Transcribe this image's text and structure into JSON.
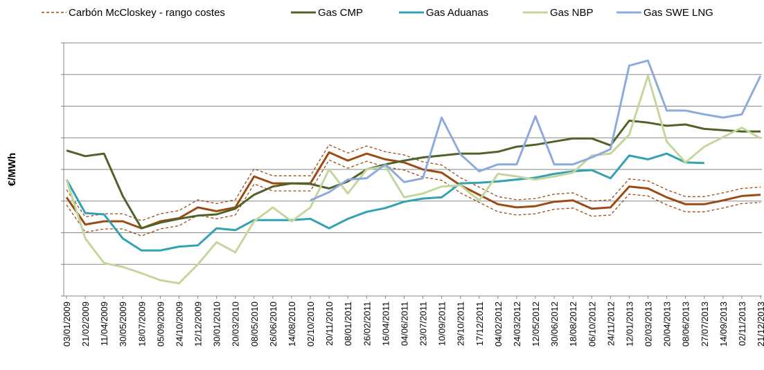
{
  "chart_data": {
    "type": "line",
    "ylabel": "€/MWh",
    "legend": "top",
    "grid": true,
    "ylim": [
      0,
      40
    ],
    "yticks": [
      0,
      5,
      10,
      15,
      20,
      25,
      30,
      35,
      40
    ],
    "categories": [
      "03/01/2009",
      "21/02/2009",
      "11/04/2009",
      "30/05/2009",
      "18/07/2009",
      "05/09/2009",
      "24/10/2009",
      "12/12/2009",
      "30/01/2010",
      "20/03/2010",
      "08/05/2010",
      "26/06/2010",
      "14/08/2010",
      "02/10/2010",
      "20/11/2010",
      "08/01/2011",
      "26/02/2011",
      "16/04/2011",
      "04/06/2011",
      "23/07/2011",
      "10/09/2011",
      "29/10/2011",
      "17/12/2011",
      "04/02/2012",
      "24/03/2012",
      "12/05/2012",
      "30/06/2012",
      "18/08/2012",
      "06/10/2012",
      "24/11/2012",
      "12/01/2013",
      "02/03/2013",
      "20/04/2013",
      "08/06/2013",
      "27/07/2013",
      "14/09/2013",
      "02/11/2013",
      "21/12/2013"
    ],
    "series": [
      {
        "name": "Carbón McCloskey - rango costes",
        "color": "#9c4a12",
        "dash": true,
        "values": [
          15.6,
          11.3,
          11.8,
          11.8,
          10.7,
          11.8,
          12.3,
          14.0,
          13.4,
          14.0,
          18.9,
          17.8,
          17.8,
          17.8,
          22.7,
          21.4,
          22.5,
          21.6,
          21.1,
          20.0,
          19.5,
          17.5,
          16.0,
          14.5,
          14.0,
          14.2,
          14.9,
          15.1,
          13.8,
          14.0,
          17.3,
          17.0,
          15.6,
          14.5,
          14.5,
          15.1,
          15.8,
          16.0
        ],
        "high": [
          16.8,
          12.5,
          13.0,
          13.0,
          11.9,
          13.0,
          13.5,
          15.2,
          14.6,
          15.2,
          20.1,
          19.0,
          19.0,
          19.0,
          23.9,
          22.6,
          23.7,
          22.8,
          22.3,
          21.2,
          20.7,
          18.7,
          17.2,
          15.7,
          15.2,
          15.4,
          16.1,
          16.3,
          15.0,
          15.2,
          18.5,
          18.2,
          16.8,
          15.7,
          15.7,
          16.3,
          17.0,
          17.2
        ],
        "low": [
          14.4,
          10.1,
          10.6,
          10.6,
          9.5,
          10.6,
          11.1,
          12.8,
          12.2,
          12.8,
          17.7,
          16.6,
          16.6,
          16.6,
          21.5,
          20.2,
          21.3,
          20.4,
          19.9,
          18.8,
          18.3,
          16.3,
          14.8,
          13.3,
          12.8,
          13.0,
          13.7,
          13.9,
          12.6,
          12.8,
          16.1,
          15.8,
          14.4,
          13.3,
          13.3,
          13.9,
          14.6,
          14.8
        ]
      },
      {
        "name": "Gas CMP",
        "color": "#4f6228",
        "values": [
          23.0,
          22.1,
          22.5,
          15.8,
          10.7,
          11.6,
          12.2,
          12.7,
          12.9,
          13.8,
          16.0,
          17.3,
          17.8,
          17.7,
          17.0,
          18.1,
          20.0,
          20.8,
          21.4,
          21.9,
          22.2,
          22.5,
          22.5,
          22.8,
          23.6,
          23.9,
          24.4,
          24.9,
          24.9,
          23.8,
          27.7,
          27.4,
          26.9,
          27.1,
          26.4,
          26.2,
          26.0,
          26.0
        ]
      },
      {
        "name": "Gas Aduanas",
        "color": "#31a1b3",
        "values": [
          18.4,
          13.1,
          12.9,
          9.1,
          7.2,
          7.2,
          7.8,
          8.0,
          10.7,
          10.4,
          12.0,
          12.0,
          12.0,
          12.2,
          10.7,
          12.2,
          13.3,
          13.9,
          14.9,
          15.4,
          15.6,
          17.8,
          17.9,
          18.1,
          18.4,
          18.7,
          19.3,
          19.7,
          19.9,
          18.6,
          22.2,
          21.6,
          22.5,
          21.1,
          21.0,
          null,
          null,
          null
        ]
      },
      {
        "name": "Gas NBP",
        "color": "#c3d69b",
        "values": [
          18.4,
          9.1,
          5.2,
          4.6,
          3.6,
          2.5,
          2.0,
          5.0,
          8.5,
          6.9,
          11.8,
          14.0,
          11.8,
          14.0,
          20.0,
          16.2,
          20.0,
          20.5,
          15.6,
          16.2,
          17.3,
          17.5,
          15.1,
          19.3,
          18.9,
          18.4,
          18.9,
          19.5,
          22.2,
          22.5,
          25.5,
          34.8,
          24.4,
          21.1,
          23.6,
          25.1,
          26.6,
          24.9
        ]
      },
      {
        "name": "Gas SWE LNG",
        "color": "#8ea9db",
        "values": [
          null,
          null,
          null,
          null,
          null,
          null,
          null,
          null,
          null,
          null,
          null,
          null,
          null,
          15.1,
          16.4,
          18.4,
          18.6,
          20.8,
          18.0,
          18.6,
          28.2,
          22.4,
          19.7,
          20.8,
          20.8,
          28.4,
          20.8,
          20.8,
          21.9,
          23.2,
          36.4,
          37.2,
          29.3,
          29.3,
          28.7,
          28.2,
          28.7,
          34.8
        ]
      }
    ]
  }
}
